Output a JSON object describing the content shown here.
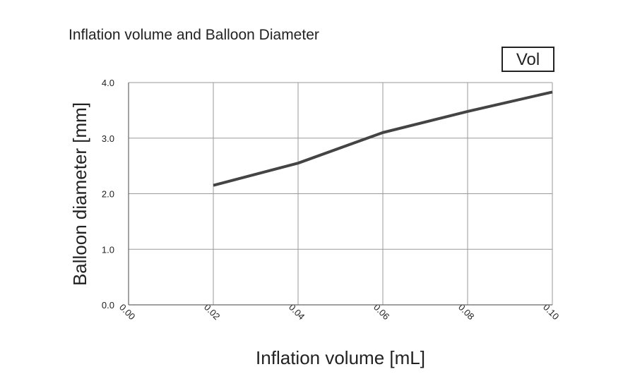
{
  "chart_data": {
    "type": "line",
    "title": "Inflation volume and Balloon Diameter",
    "annotation": "Vol",
    "x_label": "Inflation volume [mL]",
    "y_label": "Balloon diameter [mm]",
    "x": [
      0.02,
      0.04,
      0.06,
      0.08,
      0.1
    ],
    "series": [
      {
        "name": "Balloon diameter",
        "color": "#444444",
        "values": [
          2.15,
          2.55,
          3.1,
          3.48,
          3.83
        ]
      }
    ],
    "xlim": [
      0,
      0.1
    ],
    "ylim": [
      0,
      4
    ],
    "xticks": [
      {
        "value": 0,
        "label": "0.00"
      },
      {
        "value": 0.02,
        "label": "0.02"
      },
      {
        "value": 0.04,
        "label": "0.04"
      },
      {
        "value": 0.06,
        "label": "0.06"
      },
      {
        "value": 0.08,
        "label": "0.08"
      },
      {
        "value": 0.1,
        "label": "0.10"
      }
    ],
    "yticks": [
      {
        "value": 0,
        "label": "0.0"
      },
      {
        "value": 1,
        "label": "1.0"
      },
      {
        "value": 2,
        "label": "2.0"
      },
      {
        "value": 3,
        "label": "3.0"
      },
      {
        "value": 4,
        "label": "4.0"
      }
    ],
    "grid": true
  }
}
